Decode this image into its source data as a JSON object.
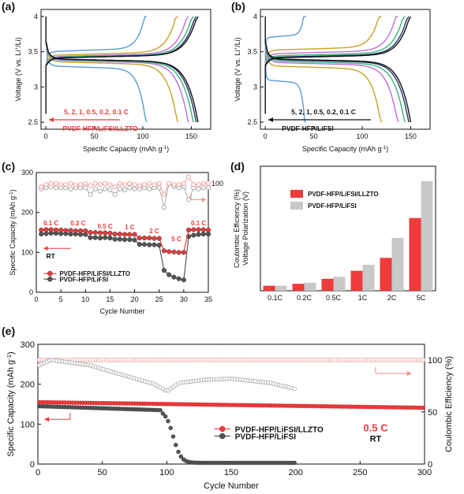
{
  "panels": {
    "a": {
      "letter": "(a)",
      "xlabel": "Specific Capacity (mAh g",
      "xlabel_sup": "-1",
      "xlabel_end": ")",
      "ylabel": "Voltage (V vs. Li",
      "ylabel_sup": "+",
      "ylabel_end": "/Li)",
      "xticks": [
        "0",
        "50",
        "100",
        "150"
      ],
      "yticks": [
        "2.5",
        "3",
        "3.5",
        "4"
      ],
      "rates_label": "5, 2, 1, 0.5, 0.2, 0.1 C",
      "name_label": "PVDF-HFP/LiFSI/LLZTO"
    },
    "b": {
      "letter": "(b)",
      "xlabel": "Specific Capacity (mAh g",
      "xlabel_sup": "-1",
      "xlabel_end": ")",
      "ylabel": "Voltage (V vs. Li",
      "ylabel_sup": "+",
      "ylabel_end": "/Li)",
      "xticks": [
        "0",
        "50",
        "100",
        "150"
      ],
      "yticks": [
        "2.5",
        "3",
        "3.5",
        "4"
      ],
      "rates_label": "5, 2, 1, 0.5, 0.2, 0.1 C",
      "name_label": "PVDF-HFP/LiFSI"
    },
    "c": {
      "letter": "(c)",
      "xlabel": "Cycle Number",
      "ylabel": "Specific Capacity (mAh g",
      "ylabel_sup": "-1",
      "ylabel_end": ")",
      "xticks": [
        "0",
        "5",
        "10",
        "15",
        "20",
        "25",
        "30",
        "35"
      ],
      "yticks": [
        "0",
        "100",
        "200",
        "300"
      ],
      "ce_ticks": [
        "100"
      ],
      "rate_labels": [
        "0.1 C",
        "0.2 C",
        "0.5 C",
        "1 C",
        "2 C",
        "5 C",
        "0.1 C"
      ],
      "rt": "RT",
      "legend": [
        "PVDF-HFP/LiFSI/LLZTO",
        "PVDF-HFP/LiFSI"
      ]
    },
    "d": {
      "letter": "(d)",
      "ylabel": "Voltage Polarization (V)",
      "ylabel_ghost": "Coulombic Efficiency (%)",
      "xticks": [
        "0.1C",
        "0.2C",
        "0.5C",
        "1C",
        "2C",
        "5C"
      ],
      "legend": [
        "PVDF-HFP/LiFSI/LLZTO",
        "PVDF-HFP/LiFSI"
      ]
    },
    "e": {
      "letter": "(e)",
      "xlabel": "Cycle Number",
      "ylabel": "Specific Capacity (mAh g",
      "ylabel_sup": "-1",
      "ylabel_end": ")",
      "ylabel_right": "Coulombic Efficiency (%)",
      "xticks": [
        "0",
        "50",
        "100",
        "150",
        "200",
        "250",
        "300"
      ],
      "yticks": [
        "0",
        "100",
        "200",
        "300"
      ],
      "ce_ticks": [
        "0",
        "50",
        "100"
      ],
      "rate": "0.5 C",
      "rt": "RT",
      "legend": [
        "PVDF-HFP/LiFSI/LLZTO",
        "PVDF-HFP/LiFSI"
      ]
    }
  },
  "colors": {
    "red": "#ee3b3b",
    "red_light": "#f08c8c",
    "gray": "#555555",
    "gray_light": "#999999",
    "bar_gray": "#c8c8c8",
    "rate_curves": [
      "#5b9bd5",
      "#c9a227",
      "#bf6ed8",
      "#3cb37a",
      "#1f3864",
      "#111111"
    ]
  },
  "chart_data": [
    {
      "panel": "a",
      "type": "line",
      "x_range": [
        -5,
        170
      ],
      "y_range": [
        2.4,
        4.1
      ],
      "series": [
        {
          "rate": "5 C",
          "capacity": 104,
          "plateau": 3.3,
          "ch_plateau": 3.5
        },
        {
          "rate": "2 C",
          "capacity": 136,
          "plateau": 3.36,
          "ch_plateau": 3.45
        },
        {
          "rate": "1 C",
          "capacity": 147,
          "plateau": 3.38,
          "ch_plateau": 3.43
        },
        {
          "rate": "0.5 C",
          "capacity": 152,
          "plateau": 3.39,
          "ch_plateau": 3.42
        },
        {
          "rate": "0.2 C",
          "capacity": 155,
          "plateau": 3.4,
          "ch_plateau": 3.41
        },
        {
          "rate": "0.1 C",
          "capacity": 157,
          "plateau": 3.4,
          "ch_plateau": 3.41
        }
      ]
    },
    {
      "panel": "b",
      "type": "line",
      "x_range": [
        -5,
        170
      ],
      "y_range": [
        2.4,
        4.1
      ],
      "series": [
        {
          "rate": "5 C",
          "capacity": 42,
          "plateau": 3.1,
          "ch_plateau": 3.7
        },
        {
          "rate": "2 C",
          "capacity": 120,
          "plateau": 3.3,
          "ch_plateau": 3.52
        },
        {
          "rate": "1 C",
          "capacity": 137,
          "plateau": 3.35,
          "ch_plateau": 3.47
        },
        {
          "rate": "0.5 C",
          "capacity": 144,
          "plateau": 3.37,
          "ch_plateau": 3.44
        },
        {
          "rate": "0.2 C",
          "capacity": 148,
          "plateau": 3.39,
          "ch_plateau": 3.42
        },
        {
          "rate": "0.1 C",
          "capacity": 150,
          "plateau": 3.4,
          "ch_plateau": 3.41
        }
      ]
    },
    {
      "panel": "c",
      "type": "scatter",
      "x_range": [
        0,
        35
      ],
      "y_range": [
        0,
        300
      ],
      "ce_range": [
        0,
        110
      ],
      "series": [
        {
          "name": "PVDF-HFP/LiFSI/LLZTO",
          "x": [
            1,
            2,
            3,
            4,
            5,
            6,
            7,
            8,
            9,
            10,
            11,
            12,
            13,
            14,
            15,
            16,
            17,
            18,
            19,
            20,
            21,
            22,
            23,
            24,
            25,
            26,
            27,
            28,
            29,
            30,
            31,
            32,
            33,
            34,
            35
          ],
          "y": [
            156,
            157,
            157,
            156,
            156,
            155,
            155,
            154,
            154,
            154,
            150,
            150,
            149,
            149,
            148,
            146,
            146,
            145,
            145,
            145,
            136,
            136,
            136,
            135,
            135,
            104,
            102,
            101,
            100,
            100,
            156,
            157,
            157,
            157,
            156
          ]
        },
        {
          "name": "PVDF-HFP/LiFSI",
          "x": [
            1,
            2,
            3,
            4,
            5,
            6,
            7,
            8,
            9,
            10,
            11,
            12,
            13,
            14,
            15,
            16,
            17,
            18,
            19,
            20,
            21,
            22,
            23,
            24,
            25,
            26,
            27,
            28,
            29,
            30,
            31,
            32,
            33,
            34,
            35
          ],
          "y": [
            146,
            147,
            148,
            148,
            147,
            147,
            146,
            146,
            145,
            145,
            137,
            137,
            136,
            137,
            136,
            133,
            133,
            132,
            132,
            131,
            120,
            120,
            119,
            119,
            118,
            55,
            44,
            38,
            34,
            31,
            140,
            143,
            145,
            146,
            146
          ]
        },
        {
          "name": "CE PVDF-HFP/LiFSI/LLZTO",
          "x": [
            1,
            2,
            3,
            4,
            5,
            6,
            7,
            8,
            9,
            10,
            11,
            12,
            13,
            14,
            15,
            16,
            17,
            18,
            19,
            20,
            21,
            22,
            23,
            24,
            25,
            26,
            27,
            28,
            29,
            30,
            31,
            32,
            33,
            34,
            35
          ],
          "y": [
            97,
            99,
            100,
            100,
            99,
            99,
            100,
            99,
            99,
            100,
            98,
            100,
            99,
            100,
            99,
            97,
            100,
            99,
            100,
            99,
            98,
            99,
            100,
            99,
            100,
            90,
            100,
            99,
            99,
            100,
            106,
            99,
            99,
            100,
            100
          ]
        },
        {
          "name": "CE PVDF-HFP/LiFSI",
          "x": [
            1,
            2,
            3,
            4,
            5,
            6,
            7,
            8,
            9,
            10,
            11,
            12,
            13,
            14,
            15,
            16,
            17,
            18,
            19,
            20,
            21,
            22,
            23,
            24,
            25,
            26,
            27,
            28,
            29,
            30,
            31,
            32,
            33,
            34,
            35
          ],
          "y": [
            95,
            96,
            97,
            96,
            96,
            96,
            95,
            96,
            96,
            96,
            90,
            95,
            93,
            95,
            94,
            90,
            95,
            94,
            96,
            95,
            95,
            96,
            95,
            96,
            96,
            78,
            100,
            97,
            96,
            97,
            85,
            96,
            95,
            96,
            96
          ]
        }
      ]
    },
    {
      "panel": "d",
      "type": "bar",
      "categories": [
        "0.1C",
        "0.2C",
        "0.5C",
        "1C",
        "2C",
        "5C"
      ],
      "y_range": [
        0,
        1.25
      ],
      "series": [
        {
          "name": "PVDF-HFP/LiFSI/LLZTO",
          "values": [
            0.05,
            0.07,
            0.12,
            0.2,
            0.33,
            0.73
          ]
        },
        {
          "name": "PVDF-HFP/LiFSI",
          "values": [
            0.05,
            0.08,
            0.14,
            0.26,
            0.53,
            1.1
          ]
        }
      ]
    },
    {
      "panel": "e",
      "type": "scatter",
      "x_range": [
        0,
        300
      ],
      "y_range": [
        0,
        300
      ],
      "ce_range": [
        0,
        115
      ],
      "series": [
        {
          "name": "PVDF-HFP/LiFSI/LLZTO",
          "shape": "slow-fade",
          "start": 155,
          "end": 141,
          "cycles": 300
        },
        {
          "name": "PVDF-HFP/LiFSI",
          "shape": "fade-then-collapse",
          "start": 145,
          "knee_cycle": 95,
          "knee": 135,
          "collapse_end": 3,
          "cycles": 200
        },
        {
          "name": "CE PVDF-HFP/LiFSI/LLZTO",
          "level": 100,
          "cycles": 300
        },
        {
          "name": "CE PVDF-HFP/LiFSI",
          "points": [
            [
              1,
              95
            ],
            [
              10,
              100
            ],
            [
              40,
              95
            ],
            [
              70,
              84
            ],
            [
              90,
              77
            ],
            [
              100,
              70
            ],
            [
              110,
              78
            ],
            [
              130,
              81
            ],
            [
              150,
              82
            ],
            [
              180,
              78
            ],
            [
              200,
              72
            ]
          ]
        }
      ]
    }
  ]
}
